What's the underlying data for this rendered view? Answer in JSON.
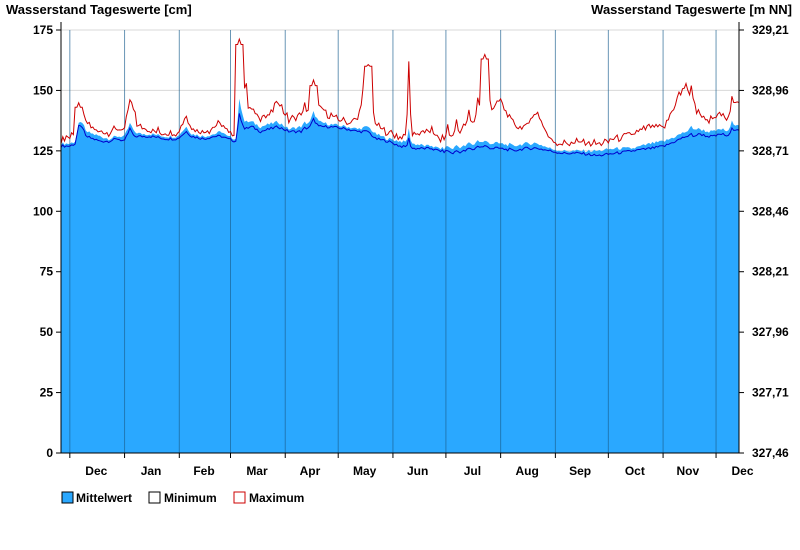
{
  "chart_data": {
    "type": "area",
    "title_left": "Wasserstand Tageswerte [cm]",
    "title_right": "Wasserstand Tageswerte [m NN]",
    "y_left": {
      "ylim": [
        0,
        175
      ],
      "ticks": [
        0,
        25,
        50,
        75,
        100,
        125,
        150,
        175
      ],
      "tick_labels": [
        "0",
        "25",
        "50",
        "75",
        "100",
        "125",
        "150",
        "175"
      ]
    },
    "y_right": {
      "ylim": [
        327.46,
        329.21
      ],
      "ticks": [
        327.46,
        327.71,
        327.96,
        328.21,
        328.46,
        328.71,
        328.96,
        329.21
      ],
      "tick_labels": [
        "327,46",
        "327,71",
        "327,96",
        "328,21",
        "328,46",
        "328,71",
        "328,96",
        "329,21"
      ]
    },
    "grid": true,
    "legend_position": "bottom-left",
    "x_start": "2023-11-26",
    "x_end": "2024-12-14",
    "month_labels": [
      {
        "label": "Dec",
        "date": "2023-12-16"
      },
      {
        "label": "Jan",
        "date": "2024-01-16"
      },
      {
        "label": "Feb",
        "date": "2024-02-15"
      },
      {
        "label": "Mar",
        "date": "2024-03-16"
      },
      {
        "label": "Apr",
        "date": "2024-04-15"
      },
      {
        "label": "May",
        "date": "2024-05-16"
      },
      {
        "label": "Jun",
        "date": "2024-06-15"
      },
      {
        "label": "Jul",
        "date": "2024-07-16"
      },
      {
        "label": "Aug",
        "date": "2024-08-16"
      },
      {
        "label": "Sep",
        "date": "2024-09-15"
      },
      {
        "label": "Oct",
        "date": "2024-10-16"
      },
      {
        "label": "Nov",
        "date": "2024-11-15"
      },
      {
        "label": "Dec",
        "date": "2024-12-16"
      }
    ],
    "month_boundaries": [
      "2023-12-01",
      "2024-01-01",
      "2024-02-01",
      "2024-03-01",
      "2024-04-01",
      "2024-05-01",
      "2024-06-01",
      "2024-07-01",
      "2024-08-01",
      "2024-09-01",
      "2024-10-01",
      "2024-11-01",
      "2024-12-01"
    ],
    "series": [
      {
        "name": "Mittelwert",
        "color": "#2aa8ff",
        "points": [
          [
            "2023-11-26",
            128
          ],
          [
            "2023-12-01",
            128
          ],
          [
            "2023-12-04",
            129
          ],
          [
            "2023-12-06",
            136
          ],
          [
            "2023-12-08",
            137
          ],
          [
            "2023-12-10",
            133
          ],
          [
            "2023-12-14",
            132
          ],
          [
            "2023-12-18",
            131
          ],
          [
            "2023-12-23",
            130
          ],
          [
            "2023-12-28",
            131
          ],
          [
            "2024-01-01",
            131
          ],
          [
            "2024-01-04",
            136
          ],
          [
            "2024-01-06",
            133
          ],
          [
            "2024-01-10",
            132
          ],
          [
            "2024-01-16",
            132
          ],
          [
            "2024-01-24",
            131
          ],
          [
            "2024-01-31",
            131
          ],
          [
            "2024-02-05",
            135
          ],
          [
            "2024-02-08",
            132
          ],
          [
            "2024-02-15",
            131
          ],
          [
            "2024-02-21",
            132
          ],
          [
            "2024-02-25",
            133
          ],
          [
            "2024-02-28",
            131
          ],
          [
            "2024-03-04",
            130
          ],
          [
            "2024-03-06",
            146
          ],
          [
            "2024-03-09",
            137
          ],
          [
            "2024-03-13",
            137
          ],
          [
            "2024-03-18",
            135
          ],
          [
            "2024-03-23",
            136
          ],
          [
            "2024-03-28",
            137
          ],
          [
            "2024-04-03",
            134
          ],
          [
            "2024-04-10",
            135
          ],
          [
            "2024-04-15",
            137
          ],
          [
            "2024-04-17",
            141
          ],
          [
            "2024-04-20",
            137
          ],
          [
            "2024-04-26",
            136
          ],
          [
            "2024-05-06",
            135
          ],
          [
            "2024-05-12",
            134
          ],
          [
            "2024-05-18",
            135
          ],
          [
            "2024-05-22",
            132
          ],
          [
            "2024-05-29",
            130
          ],
          [
            "2024-06-05",
            129
          ],
          [
            "2024-06-12",
            128
          ],
          [
            "2024-06-20",
            127
          ],
          [
            "2024-06-28",
            126
          ],
          [
            "2024-07-05",
            126
          ],
          [
            "2024-07-12",
            127
          ],
          [
            "2024-07-19",
            128
          ],
          [
            "2024-07-23",
            129
          ],
          [
            "2024-07-27",
            128
          ],
          [
            "2024-08-01",
            128
          ],
          [
            "2024-08-08",
            127
          ],
          [
            "2024-08-15",
            128
          ],
          [
            "2024-08-22",
            128
          ],
          [
            "2024-08-29",
            126
          ],
          [
            "2024-09-05",
            125
          ],
          [
            "2024-09-15",
            125
          ],
          [
            "2024-09-25",
            125
          ],
          [
            "2024-10-05",
            126
          ],
          [
            "2024-10-15",
            126
          ],
          [
            "2024-10-25",
            128
          ],
          [
            "2024-11-02",
            129
          ],
          [
            "2024-11-08",
            131
          ],
          [
            "2024-11-14",
            133
          ],
          [
            "2024-11-18",
            134
          ],
          [
            "2024-11-22",
            134
          ],
          [
            "2024-11-26",
            133
          ],
          [
            "2024-11-30",
            133
          ],
          [
            "2024-12-04",
            134
          ],
          [
            "2024-12-08",
            133
          ],
          [
            "2024-12-10",
            137
          ],
          [
            "2024-12-12",
            136
          ]
        ]
      },
      {
        "name": "Minimum",
        "color": "#ffffff",
        "line_color": "#0000cc",
        "points": [
          [
            "2023-11-26",
            127
          ],
          [
            "2023-12-01",
            127
          ],
          [
            "2023-12-04",
            128
          ],
          [
            "2023-12-06",
            135
          ],
          [
            "2023-12-08",
            135
          ],
          [
            "2023-12-10",
            131
          ],
          [
            "2023-12-14",
            130
          ],
          [
            "2023-12-18",
            129
          ],
          [
            "2023-12-23",
            129
          ],
          [
            "2023-12-28",
            130
          ],
          [
            "2024-01-01",
            129
          ],
          [
            "2024-01-04",
            134
          ],
          [
            "2024-01-06",
            131
          ],
          [
            "2024-01-10",
            131
          ],
          [
            "2024-01-16",
            131
          ],
          [
            "2024-01-24",
            130
          ],
          [
            "2024-01-31",
            130
          ],
          [
            "2024-02-05",
            133
          ],
          [
            "2024-02-08",
            131
          ],
          [
            "2024-02-15",
            130
          ],
          [
            "2024-02-21",
            131
          ],
          [
            "2024-02-25",
            131
          ],
          [
            "2024-02-28",
            130
          ],
          [
            "2024-03-04",
            129
          ],
          [
            "2024-03-06",
            140
          ],
          [
            "2024-03-09",
            134
          ],
          [
            "2024-03-13",
            135
          ],
          [
            "2024-03-18",
            133
          ],
          [
            "2024-03-23",
            134
          ],
          [
            "2024-03-28",
            135
          ],
          [
            "2024-04-03",
            133
          ],
          [
            "2024-04-10",
            133
          ],
          [
            "2024-04-15",
            135
          ],
          [
            "2024-04-17",
            138
          ],
          [
            "2024-04-20",
            135
          ],
          [
            "2024-04-26",
            135
          ],
          [
            "2024-05-06",
            134
          ],
          [
            "2024-05-12",
            133
          ],
          [
            "2024-05-18",
            133
          ],
          [
            "2024-05-22",
            130
          ],
          [
            "2024-05-29",
            129
          ],
          [
            "2024-06-05",
            127
          ],
          [
            "2024-06-12",
            126
          ],
          [
            "2024-06-20",
            126
          ],
          [
            "2024-06-28",
            125
          ],
          [
            "2024-07-05",
            124
          ],
          [
            "2024-07-12",
            125
          ],
          [
            "2024-07-19",
            126
          ],
          [
            "2024-07-23",
            127
          ],
          [
            "2024-07-27",
            126
          ],
          [
            "2024-08-01",
            126
          ],
          [
            "2024-08-08",
            125
          ],
          [
            "2024-08-15",
            126
          ],
          [
            "2024-08-22",
            126
          ],
          [
            "2024-08-29",
            125
          ],
          [
            "2024-09-05",
            124
          ],
          [
            "2024-09-15",
            124
          ],
          [
            "2024-09-25",
            123
          ],
          [
            "2024-10-05",
            124
          ],
          [
            "2024-10-15",
            125
          ],
          [
            "2024-10-25",
            126
          ],
          [
            "2024-11-02",
            127
          ],
          [
            "2024-11-08",
            129
          ],
          [
            "2024-11-14",
            131
          ],
          [
            "2024-11-18",
            131
          ],
          [
            "2024-11-22",
            132
          ],
          [
            "2024-11-26",
            131
          ],
          [
            "2024-11-30",
            131
          ],
          [
            "2024-12-04",
            132
          ],
          [
            "2024-12-08",
            131
          ],
          [
            "2024-12-10",
            134
          ],
          [
            "2024-12-12",
            134
          ]
        ]
      },
      {
        "name": "Maximum",
        "color": "#ffffff",
        "line_color": "#cc0000",
        "points": [
          [
            "2023-11-26",
            129
          ],
          [
            "2023-12-01",
            130
          ],
          [
            "2023-12-04",
            132
          ],
          [
            "2023-12-06",
            143
          ],
          [
            "2023-12-08",
            139
          ],
          [
            "2023-12-10",
            136
          ],
          [
            "2023-12-14",
            134
          ],
          [
            "2023-12-18",
            132
          ],
          [
            "2023-12-23",
            132
          ],
          [
            "2023-12-28",
            133
          ],
          [
            "2024-01-01",
            133
          ],
          [
            "2024-01-04",
            145
          ],
          [
            "2024-01-06",
            137
          ],
          [
            "2024-01-10",
            134
          ],
          [
            "2024-01-16",
            133
          ],
          [
            "2024-01-24",
            132
          ],
          [
            "2024-01-31",
            132
          ],
          [
            "2024-02-05",
            139
          ],
          [
            "2024-02-08",
            134
          ],
          [
            "2024-02-15",
            132
          ],
          [
            "2024-02-21",
            134
          ],
          [
            "2024-02-25",
            136
          ],
          [
            "2024-02-28",
            132
          ],
          [
            "2024-03-04",
            131
          ],
          [
            "2024-03-06",
            169
          ],
          [
            "2024-03-09",
            145
          ],
          [
            "2024-03-13",
            141
          ],
          [
            "2024-03-18",
            138
          ],
          [
            "2024-03-23",
            139
          ],
          [
            "2024-03-28",
            145
          ],
          [
            "2024-04-03",
            137
          ],
          [
            "2024-04-10",
            139
          ],
          [
            "2024-04-15",
            141
          ],
          [
            "2024-04-17",
            152
          ],
          [
            "2024-04-20",
            142
          ],
          [
            "2024-04-26",
            139
          ],
          [
            "2024-05-06",
            136
          ],
          [
            "2024-05-12",
            137
          ],
          [
            "2024-05-18",
            160
          ],
          [
            "2024-05-22",
            135
          ],
          [
            "2024-05-29",
            132
          ],
          [
            "2024-06-05",
            130
          ],
          [
            "2024-06-12",
            131
          ],
          [
            "2024-06-20",
            132
          ],
          [
            "2024-06-28",
            129
          ],
          [
            "2024-07-05",
            130
          ],
          [
            "2024-07-12",
            135
          ],
          [
            "2024-07-19",
            137
          ],
          [
            "2024-07-23",
            163
          ],
          [
            "2024-07-27",
            140
          ],
          [
            "2024-08-01",
            145
          ],
          [
            "2024-08-08",
            135
          ],
          [
            "2024-08-15",
            134
          ],
          [
            "2024-08-22",
            140
          ],
          [
            "2024-08-29",
            129
          ],
          [
            "2024-09-05",
            127
          ],
          [
            "2024-09-15",
            128
          ],
          [
            "2024-09-25",
            127
          ],
          [
            "2024-10-05",
            129
          ],
          [
            "2024-10-15",
            131
          ],
          [
            "2024-10-25",
            134
          ],
          [
            "2024-11-02",
            134
          ],
          [
            "2024-11-08",
            144
          ],
          [
            "2024-11-14",
            152
          ],
          [
            "2024-11-18",
            142
          ],
          [
            "2024-11-22",
            139
          ],
          [
            "2024-11-26",
            137
          ],
          [
            "2024-11-30",
            137
          ],
          [
            "2024-12-04",
            140
          ],
          [
            "2024-12-08",
            137
          ],
          [
            "2024-12-10",
            145
          ],
          [
            "2024-12-12",
            145
          ]
        ]
      }
    ],
    "peaks_max": [
      [
        "2023-12-06",
        143
      ],
      [
        "2024-01-05",
        145
      ],
      [
        "2024-03-06",
        169
      ],
      [
        "2024-03-08",
        146
      ],
      [
        "2024-04-12",
        145
      ],
      [
        "2024-04-17",
        152
      ],
      [
        "2024-05-18",
        160
      ],
      [
        "2024-06-10",
        162
      ],
      [
        "2024-06-23",
        135
      ],
      [
        "2024-07-02",
        136
      ],
      [
        "2024-07-07",
        138
      ],
      [
        "2024-07-14",
        142
      ],
      [
        "2024-07-19",
        147
      ],
      [
        "2024-07-23",
        163
      ],
      [
        "2024-07-29",
        144
      ],
      [
        "2024-08-06",
        140
      ],
      [
        "2024-08-20",
        140
      ],
      [
        "2024-11-17",
        152
      ],
      [
        "2024-11-12",
        145
      ],
      [
        "2024-12-12",
        145
      ]
    ]
  }
}
